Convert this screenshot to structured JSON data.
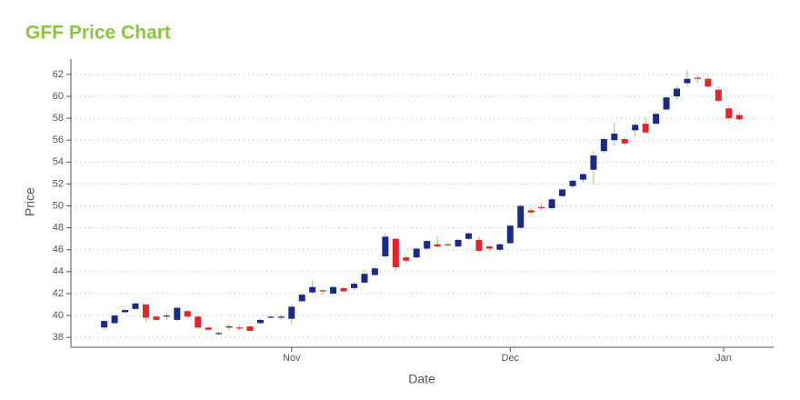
{
  "chart_data": {
    "type": "candlestick",
    "title": "GFF Price Chart",
    "x_label": "Date",
    "y_label": "Price",
    "categories": [
      null,
      null,
      null,
      null,
      null,
      null,
      null,
      null,
      null,
      null,
      null,
      null,
      null,
      null,
      null,
      null,
      null,
      null,
      null,
      null,
      null,
      null,
      null,
      null,
      null,
      null,
      null,
      null,
      null,
      null,
      null,
      null,
      null,
      null,
      null,
      null,
      null,
      null,
      null,
      null,
      null,
      null,
      null,
      null,
      null,
      null,
      null,
      null,
      null,
      null,
      null,
      null,
      null,
      null,
      null,
      null,
      null,
      null,
      null,
      null,
      null,
      null
    ],
    "open": [
      38.9,
      39.3,
      40.3,
      40.6,
      41.0,
      39.9,
      39.9,
      39.6,
      40.4,
      39.9,
      38.9,
      38.3,
      38.9,
      38.9,
      39.0,
      39.3,
      39.8,
      39.8,
      39.7,
      41.3,
      42.1,
      42.3,
      42.0,
      42.5,
      42.5,
      43.0,
      43.7,
      45.4,
      47.0,
      45.3,
      45.3,
      46.1,
      46.5,
      46.5,
      46.3,
      47.0,
      46.9,
      46.3,
      46.0,
      46.6,
      48.0,
      49.6,
      49.9,
      49.8,
      50.9,
      51.8,
      52.4,
      53.3,
      55.0,
      56.0,
      56.1,
      56.9,
      57.5,
      57.5,
      58.8,
      60.0,
      61.2,
      61.7,
      61.6,
      60.6,
      58.9,
      58.3
    ],
    "high": [
      39.6,
      40.1,
      40.6,
      41.2,
      41.1,
      40.0,
      40.3,
      40.8,
      40.5,
      40.0,
      38.9,
      38.5,
      39.2,
      39.1,
      39.1,
      39.7,
      40.0,
      40.1,
      41.0,
      42.0,
      43.2,
      42.4,
      42.7,
      42.6,
      43.0,
      44.2,
      44.4,
      47.5,
      47.1,
      45.5,
      46.2,
      46.9,
      47.2,
      46.6,
      47.0,
      47.6,
      47.2,
      46.4,
      46.6,
      48.3,
      50.1,
      49.8,
      50.3,
      50.8,
      51.6,
      52.4,
      53.0,
      55.0,
      56.3,
      57.6,
      56.3,
      57.6,
      58.1,
      58.6,
      60.0,
      60.9,
      62.4,
      61.9,
      61.7,
      60.9,
      59.1,
      58.6
    ],
    "low": [
      38.7,
      39.2,
      40.2,
      40.5,
      39.4,
      39.5,
      39.6,
      39.5,
      39.7,
      38.8,
      38.6,
      38.2,
      38.6,
      38.6,
      38.5,
      39.2,
      39.7,
      39.6,
      39.2,
      41.2,
      42.0,
      41.9,
      41.9,
      42.1,
      42.3,
      42.9,
      43.6,
      45.3,
      44.1,
      44.8,
      45.2,
      46.0,
      46.2,
      46.3,
      46.2,
      46.9,
      45.8,
      45.9,
      45.8,
      46.5,
      47.9,
      49.2,
      49.6,
      49.7,
      50.8,
      51.6,
      52.1,
      52.0,
      54.8,
      55.5,
      55.5,
      56.3,
      56.6,
      57.4,
      58.7,
      59.7,
      60.9,
      61.2,
      60.8,
      59.5,
      57.8,
      57.8
    ],
    "close": [
      39.5,
      40.0,
      40.5,
      41.1,
      39.8,
      39.6,
      40.0,
      40.7,
      39.9,
      38.9,
      38.7,
      38.4,
      39.0,
      38.8,
      38.6,
      39.6,
      39.9,
      39.9,
      40.8,
      41.9,
      42.6,
      42.2,
      42.6,
      42.2,
      42.9,
      43.8,
      44.3,
      47.2,
      44.4,
      45.0,
      46.1,
      46.8,
      46.3,
      46.4,
      46.9,
      47.5,
      45.9,
      46.1,
      46.5,
      48.2,
      50.0,
      49.4,
      49.8,
      50.6,
      51.5,
      52.3,
      52.9,
      54.6,
      56.1,
      56.6,
      55.7,
      57.4,
      56.7,
      58.4,
      59.9,
      60.7,
      61.6,
      61.6,
      60.9,
      59.6,
      58.0,
      57.9
    ],
    "up_color": "#1a2a8c",
    "down_color": "#e8212b",
    "wick_color": "#9ccc65",
    "xlim": [
      -3.2,
      64.3
    ],
    "xticks": [
      {
        "value": 18,
        "label": "Nov"
      },
      {
        "value": 39,
        "label": "Dec"
      },
      {
        "value": 59.5,
        "label": "Jan"
      }
    ],
    "ylim": [
      37.1,
      63.4
    ],
    "yticks": [
      38,
      40,
      42,
      44,
      46,
      48,
      50,
      52,
      54,
      56,
      58,
      60,
      62
    ],
    "grid": true
  }
}
